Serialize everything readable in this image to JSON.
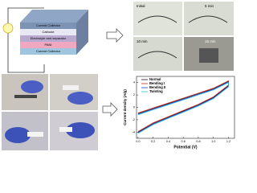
{
  "diagram": {
    "layers": [
      "Current Collector",
      "Cathode",
      "Electrolyte and separator",
      "PANI",
      "Current Collector"
    ]
  },
  "photos": {
    "labels": [
      "Initial",
      "5 min",
      "10 min",
      "15 min"
    ]
  },
  "chart_data": {
    "type": "line",
    "xlabel": "Potential (V)",
    "ylabel": "Current density (A/g)",
    "x": [
      0,
      0.2,
      0.4,
      0.6,
      0.8,
      1.0,
      1.2,
      1.2,
      1.0,
      0.8,
      0.6,
      0.4,
      0.2,
      0
    ],
    "series": [
      {
        "name": "Normal",
        "color": "#111111",
        "values": [
          -1,
          -0.2,
          0.6,
          1.4,
          2.2,
          3.0,
          4.2,
          3.5,
          1.6,
          0.4,
          -0.6,
          -1.6,
          -2.6,
          -4
        ]
      },
      {
        "name": "Bending I",
        "color": "#d42020",
        "values": [
          -0.9,
          -0.1,
          0.7,
          1.5,
          2.3,
          3.1,
          4.3,
          3.6,
          1.7,
          0.5,
          -0.5,
          -1.5,
          -2.5,
          -3.9
        ]
      },
      {
        "name": "Bending II",
        "color": "#2040d0",
        "values": [
          -1.1,
          -0.3,
          0.5,
          1.3,
          2.1,
          2.9,
          4.1,
          3.4,
          1.5,
          0.3,
          -0.7,
          -1.7,
          -2.7,
          -4.1
        ]
      },
      {
        "name": "Twisting",
        "color": "#20c0d8",
        "values": [
          -1.2,
          -0.4,
          0.4,
          1.2,
          2.0,
          2.8,
          4.0,
          3.3,
          1.4,
          0.2,
          -0.8,
          -1.8,
          -2.8,
          -4.2
        ]
      }
    ],
    "xlim": [
      -0.02,
      1.28
    ],
    "xticks": [
      {
        "value": 0,
        "label": "0.0"
      },
      0.2,
      0.4,
      0.6,
      0.8,
      {
        "value": 1,
        "label": "1.0"
      },
      1.2
    ],
    "ylim": [
      -5,
      5
    ],
    "yticks": [
      -4,
      -2,
      0,
      2,
      4
    ],
    "legend": "top-left"
  }
}
